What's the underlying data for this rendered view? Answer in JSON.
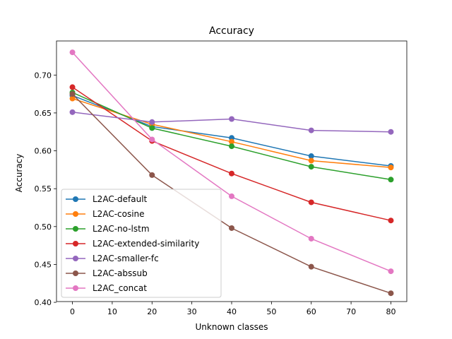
{
  "chart_data": {
    "type": "line",
    "title": "Accuracy",
    "xlabel": "Unknown classes",
    "ylabel": "Accuracy",
    "x": [
      0,
      20,
      40,
      60,
      80
    ],
    "xlim": [
      -4,
      84
    ],
    "ylim": [
      0.401,
      0.745
    ],
    "xticks": [
      0,
      10,
      20,
      30,
      40,
      50,
      60,
      70,
      80
    ],
    "xtick_labels": [
      "0",
      "10",
      "20",
      "30",
      "40",
      "50",
      "60",
      "70",
      "80"
    ],
    "yticks": [
      0.4,
      0.45,
      0.5,
      0.55,
      0.6,
      0.65,
      0.7
    ],
    "ytick_labels": [
      "0.40",
      "0.45",
      "0.50",
      "0.55",
      "0.60",
      "0.65",
      "0.70"
    ],
    "legend_position": "lower-left",
    "grid": false,
    "series": [
      {
        "name": "L2AC-default",
        "color": "#1f77b4",
        "values": [
          0.673,
          0.632,
          0.617,
          0.593,
          0.58
        ]
      },
      {
        "name": "L2AC-cosine",
        "color": "#ff7f0e",
        "values": [
          0.669,
          0.635,
          0.612,
          0.587,
          0.578
        ]
      },
      {
        "name": "L2AC-no-lstm",
        "color": "#2ca02c",
        "values": [
          0.677,
          0.63,
          0.606,
          0.579,
          0.562
        ]
      },
      {
        "name": "L2AC-extended-similarity",
        "color": "#d62728",
        "values": [
          0.684,
          0.613,
          0.57,
          0.532,
          0.508
        ]
      },
      {
        "name": "L2AC-smaller-fc",
        "color": "#9467bd",
        "values": [
          0.651,
          0.638,
          0.642,
          0.627,
          0.625
        ]
      },
      {
        "name": "L2AC-abssub",
        "color": "#8c564b",
        "values": [
          0.675,
          0.568,
          0.498,
          0.447,
          0.412
        ]
      },
      {
        "name": "L2AC_concat",
        "color": "#e377c2",
        "values": [
          0.73,
          0.615,
          0.54,
          0.484,
          0.441
        ]
      }
    ]
  }
}
